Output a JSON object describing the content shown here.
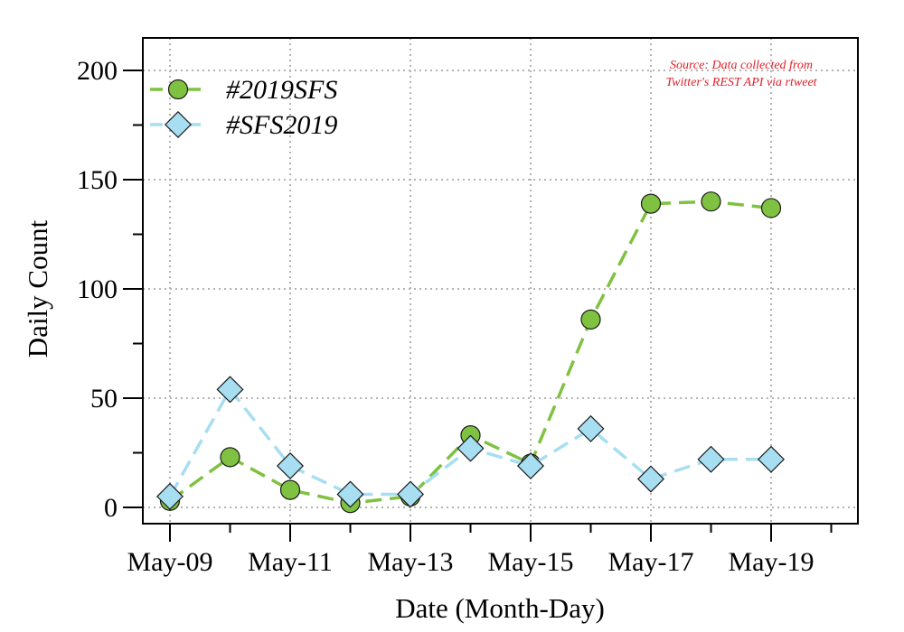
{
  "chart_data": {
    "type": "line",
    "x": [
      "May-09",
      "May-10",
      "May-11",
      "May-12",
      "May-13",
      "May-14",
      "May-15",
      "May-16",
      "May-17",
      "May-18",
      "May-19"
    ],
    "x_tick_labels": [
      "May-09",
      "May-11",
      "May-13",
      "May-15",
      "May-17",
      "May-19"
    ],
    "series": [
      {
        "name": "#2019SFS",
        "values": [
          3,
          23,
          8,
          2,
          5,
          33,
          20,
          86,
          139,
          140,
          137
        ],
        "color": "#7fc241",
        "marker": "circle",
        "line_style": "dashed"
      },
      {
        "name": "#SFS2019",
        "values": [
          5,
          54,
          19,
          6,
          6,
          27,
          19,
          36,
          13,
          22,
          22
        ],
        "color": "#a7def2",
        "marker": "diamond",
        "line_style": "dashed"
      }
    ],
    "xlabel": "Date (Month-Day)",
    "ylabel": "Daily Count",
    "ylim": [
      0,
      200
    ],
    "y_ticks": [
      0,
      50,
      100,
      150,
      200
    ],
    "xlim": [
      "May-09",
      "May-20"
    ],
    "grid": true,
    "legend_position": "top-left",
    "annotation": "Source: Data collected from Twitter's REST API via rtweet",
    "annotation_lines": [
      "Source: Data collected from",
      "Twitter's REST API via rtweet"
    ],
    "annotation_color": "#e0202a"
  }
}
